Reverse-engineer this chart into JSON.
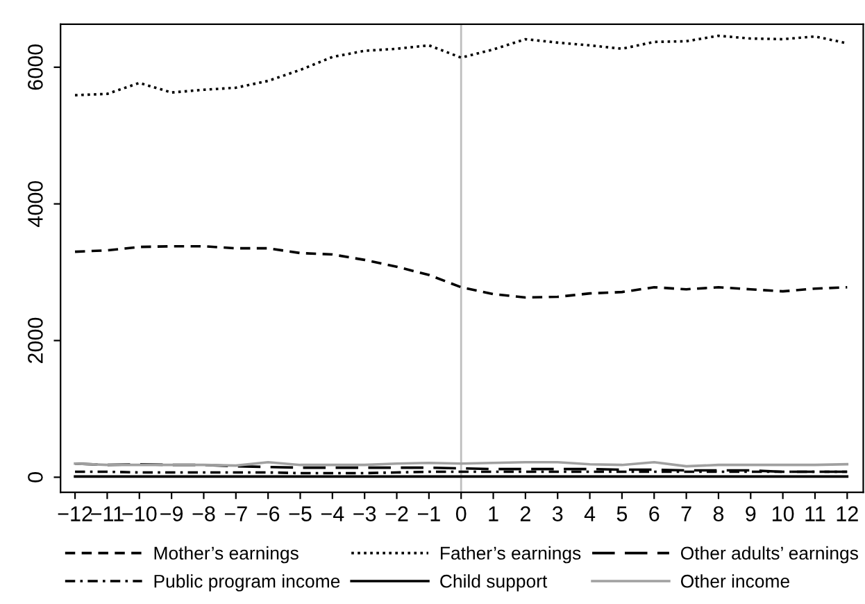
{
  "chart_data": {
    "type": "line",
    "x": [
      -12,
      -11,
      -10,
      -9,
      -8,
      -7,
      -6,
      -5,
      -4,
      -3,
      -2,
      -1,
      0,
      1,
      2,
      3,
      4,
      5,
      6,
      7,
      8,
      9,
      10,
      11,
      12
    ],
    "xlim": [
      -12.45,
      12.5
    ],
    "xticks": [
      -12,
      -11,
      -10,
      -9,
      -8,
      -7,
      -6,
      -5,
      -4,
      -3,
      -2,
      -1,
      0,
      1,
      2,
      3,
      4,
      5,
      6,
      7,
      8,
      9,
      10,
      11,
      12
    ],
    "ylim": [
      -220,
      6630
    ],
    "yticks": [
      0,
      2000,
      4000,
      6000
    ],
    "grid": false,
    "legend": "bottom",
    "ref_lines": [
      {
        "axis": "x",
        "value": 0,
        "color": "#bebebe",
        "line_style": "solid"
      }
    ],
    "series": [
      {
        "name": "Mother’s earnings",
        "color": "#000000",
        "line_style": "dashed",
        "values": [
          3300,
          3320,
          3370,
          3380,
          3380,
          3350,
          3350,
          3280,
          3260,
          3180,
          3080,
          2960,
          2780,
          2680,
          2630,
          2640,
          2690,
          2710,
          2780,
          2750,
          2780,
          2750,
          2720,
          2760,
          2780
        ]
      },
      {
        "name": "Father’s earnings",
        "color": "#000000",
        "line_style": "dotted",
        "values": [
          5590,
          5610,
          5770,
          5630,
          5670,
          5700,
          5800,
          5960,
          6150,
          6240,
          6270,
          6320,
          6140,
          6260,
          6410,
          6360,
          6320,
          6270,
          6370,
          6380,
          6460,
          6420,
          6410,
          6450,
          6350
        ]
      },
      {
        "name": "Other adults’ earnings",
        "color": "#000000",
        "line_style": "longdash",
        "values": [
          200,
          180,
          190,
          180,
          180,
          160,
          150,
          140,
          140,
          140,
          140,
          140,
          130,
          120,
          120,
          120,
          120,
          110,
          110,
          100,
          100,
          100,
          80,
          80,
          80
        ]
      },
      {
        "name": "Public program income",
        "color": "#000000",
        "line_style": "dashdot",
        "values": [
          80,
          80,
          70,
          70,
          70,
          70,
          70,
          60,
          60,
          60,
          70,
          80,
          80,
          80,
          80,
          80,
          80,
          80,
          80,
          80,
          80,
          80,
          80,
          80,
          80
        ]
      },
      {
        "name": "Child support",
        "color": "#000000",
        "line_style": "solid",
        "values": [
          10,
          10,
          10,
          10,
          10,
          10,
          10,
          10,
          10,
          10,
          10,
          10,
          10,
          10,
          10,
          10,
          10,
          10,
          10,
          10,
          10,
          10,
          10,
          10,
          10
        ]
      },
      {
        "name": "Other income",
        "color": "#a0a0a0",
        "line_style": "solid",
        "values": [
          200,
          180,
          180,
          180,
          180,
          170,
          220,
          180,
          180,
          180,
          200,
          210,
          200,
          210,
          220,
          220,
          190,
          180,
          220,
          160,
          180,
          180,
          180,
          180,
          190
        ]
      }
    ]
  }
}
